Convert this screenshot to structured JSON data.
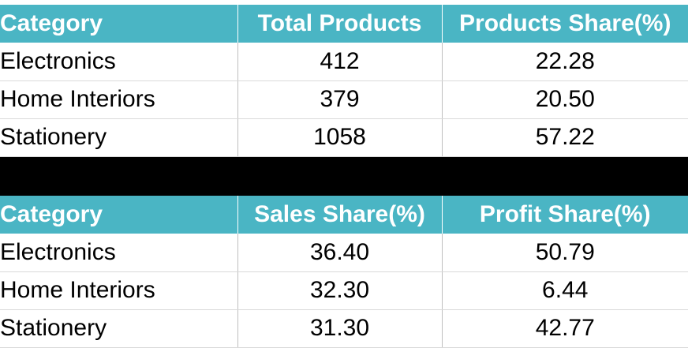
{
  "products_table": {
    "headers": [
      "Category",
      "Total Products",
      "Products Share(%)"
    ],
    "rows": [
      [
        "Electronics",
        "412",
        "22.28"
      ],
      [
        "Home Interiors",
        "379",
        "20.50"
      ],
      [
        "Stationery",
        "1058",
        "57.22"
      ]
    ]
  },
  "sales_table": {
    "headers": [
      "Category",
      "Sales Share(%)",
      "Profit Share(%)"
    ],
    "rows": [
      [
        "Electronics",
        "36.40",
        "50.79"
      ],
      [
        "Home Interiors",
        "32.30",
        "6.44"
      ],
      [
        "Stationery",
        "31.30",
        "42.77"
      ]
    ]
  },
  "colors": {
    "header_background": "#4ab5c4",
    "header_text": "#ffffff",
    "separator_band": "#000000"
  }
}
